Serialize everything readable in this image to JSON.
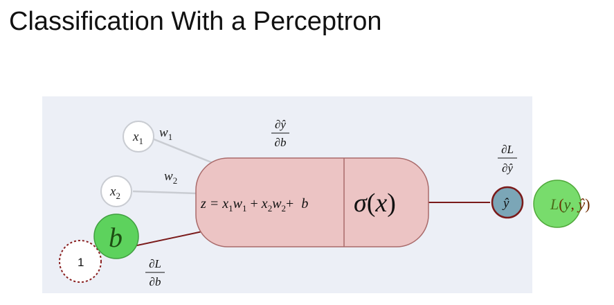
{
  "slide": {
    "title": "Classification With a Perceptron"
  },
  "diagram": {
    "inputs": {
      "x1": {
        "base": "x",
        "sub": "1"
      },
      "x2": {
        "base": "x",
        "sub": "2"
      },
      "bias": "b",
      "bias_input": "1"
    },
    "weights": {
      "w1": {
        "base": "w",
        "sub": "1"
      },
      "w2": {
        "base": "w",
        "sub": "2"
      }
    },
    "neuron": {
      "equation": {
        "z_eq": "z = ",
        "x1": "x",
        "x1_sub": "1",
        "w1": "w",
        "w1_sub": "1",
        "plus1": " + ",
        "x2": "x",
        "x2_sub": "2",
        "w2": "w",
        "w2_sub": "2",
        "plus2": "+ ",
        "b": "b"
      },
      "activation": {
        "sigma": "σ",
        "open": "(",
        "arg": "x",
        "close": ")"
      }
    },
    "output": {
      "yhat": "ŷ"
    },
    "loss": {
      "L": "L",
      "open": "(",
      "y": "y",
      "comma": ", ",
      "yhat": "ŷ",
      "close": ")"
    },
    "derivatives": {
      "dyhat_db": {
        "num": "∂ŷ",
        "den": "∂b"
      },
      "dL_dyhat": {
        "num": "∂L",
        "den": "∂ŷ"
      },
      "dL_db": {
        "num": "∂L",
        "den": "∂b"
      }
    },
    "colors": {
      "panel": "#eceff6",
      "neuron_fill": "#ecc4c4",
      "neuron_stroke": "#a96a6a",
      "connection_dark": "#7a1a1a",
      "connection_light": "#c9ccd2",
      "bias_fill": "#5dd25d",
      "output_fill": "#7ba6b7",
      "loss_fill": "#78dc6c",
      "loss_text": "#6f2b00",
      "loss_accent": "#4fa83a"
    }
  }
}
